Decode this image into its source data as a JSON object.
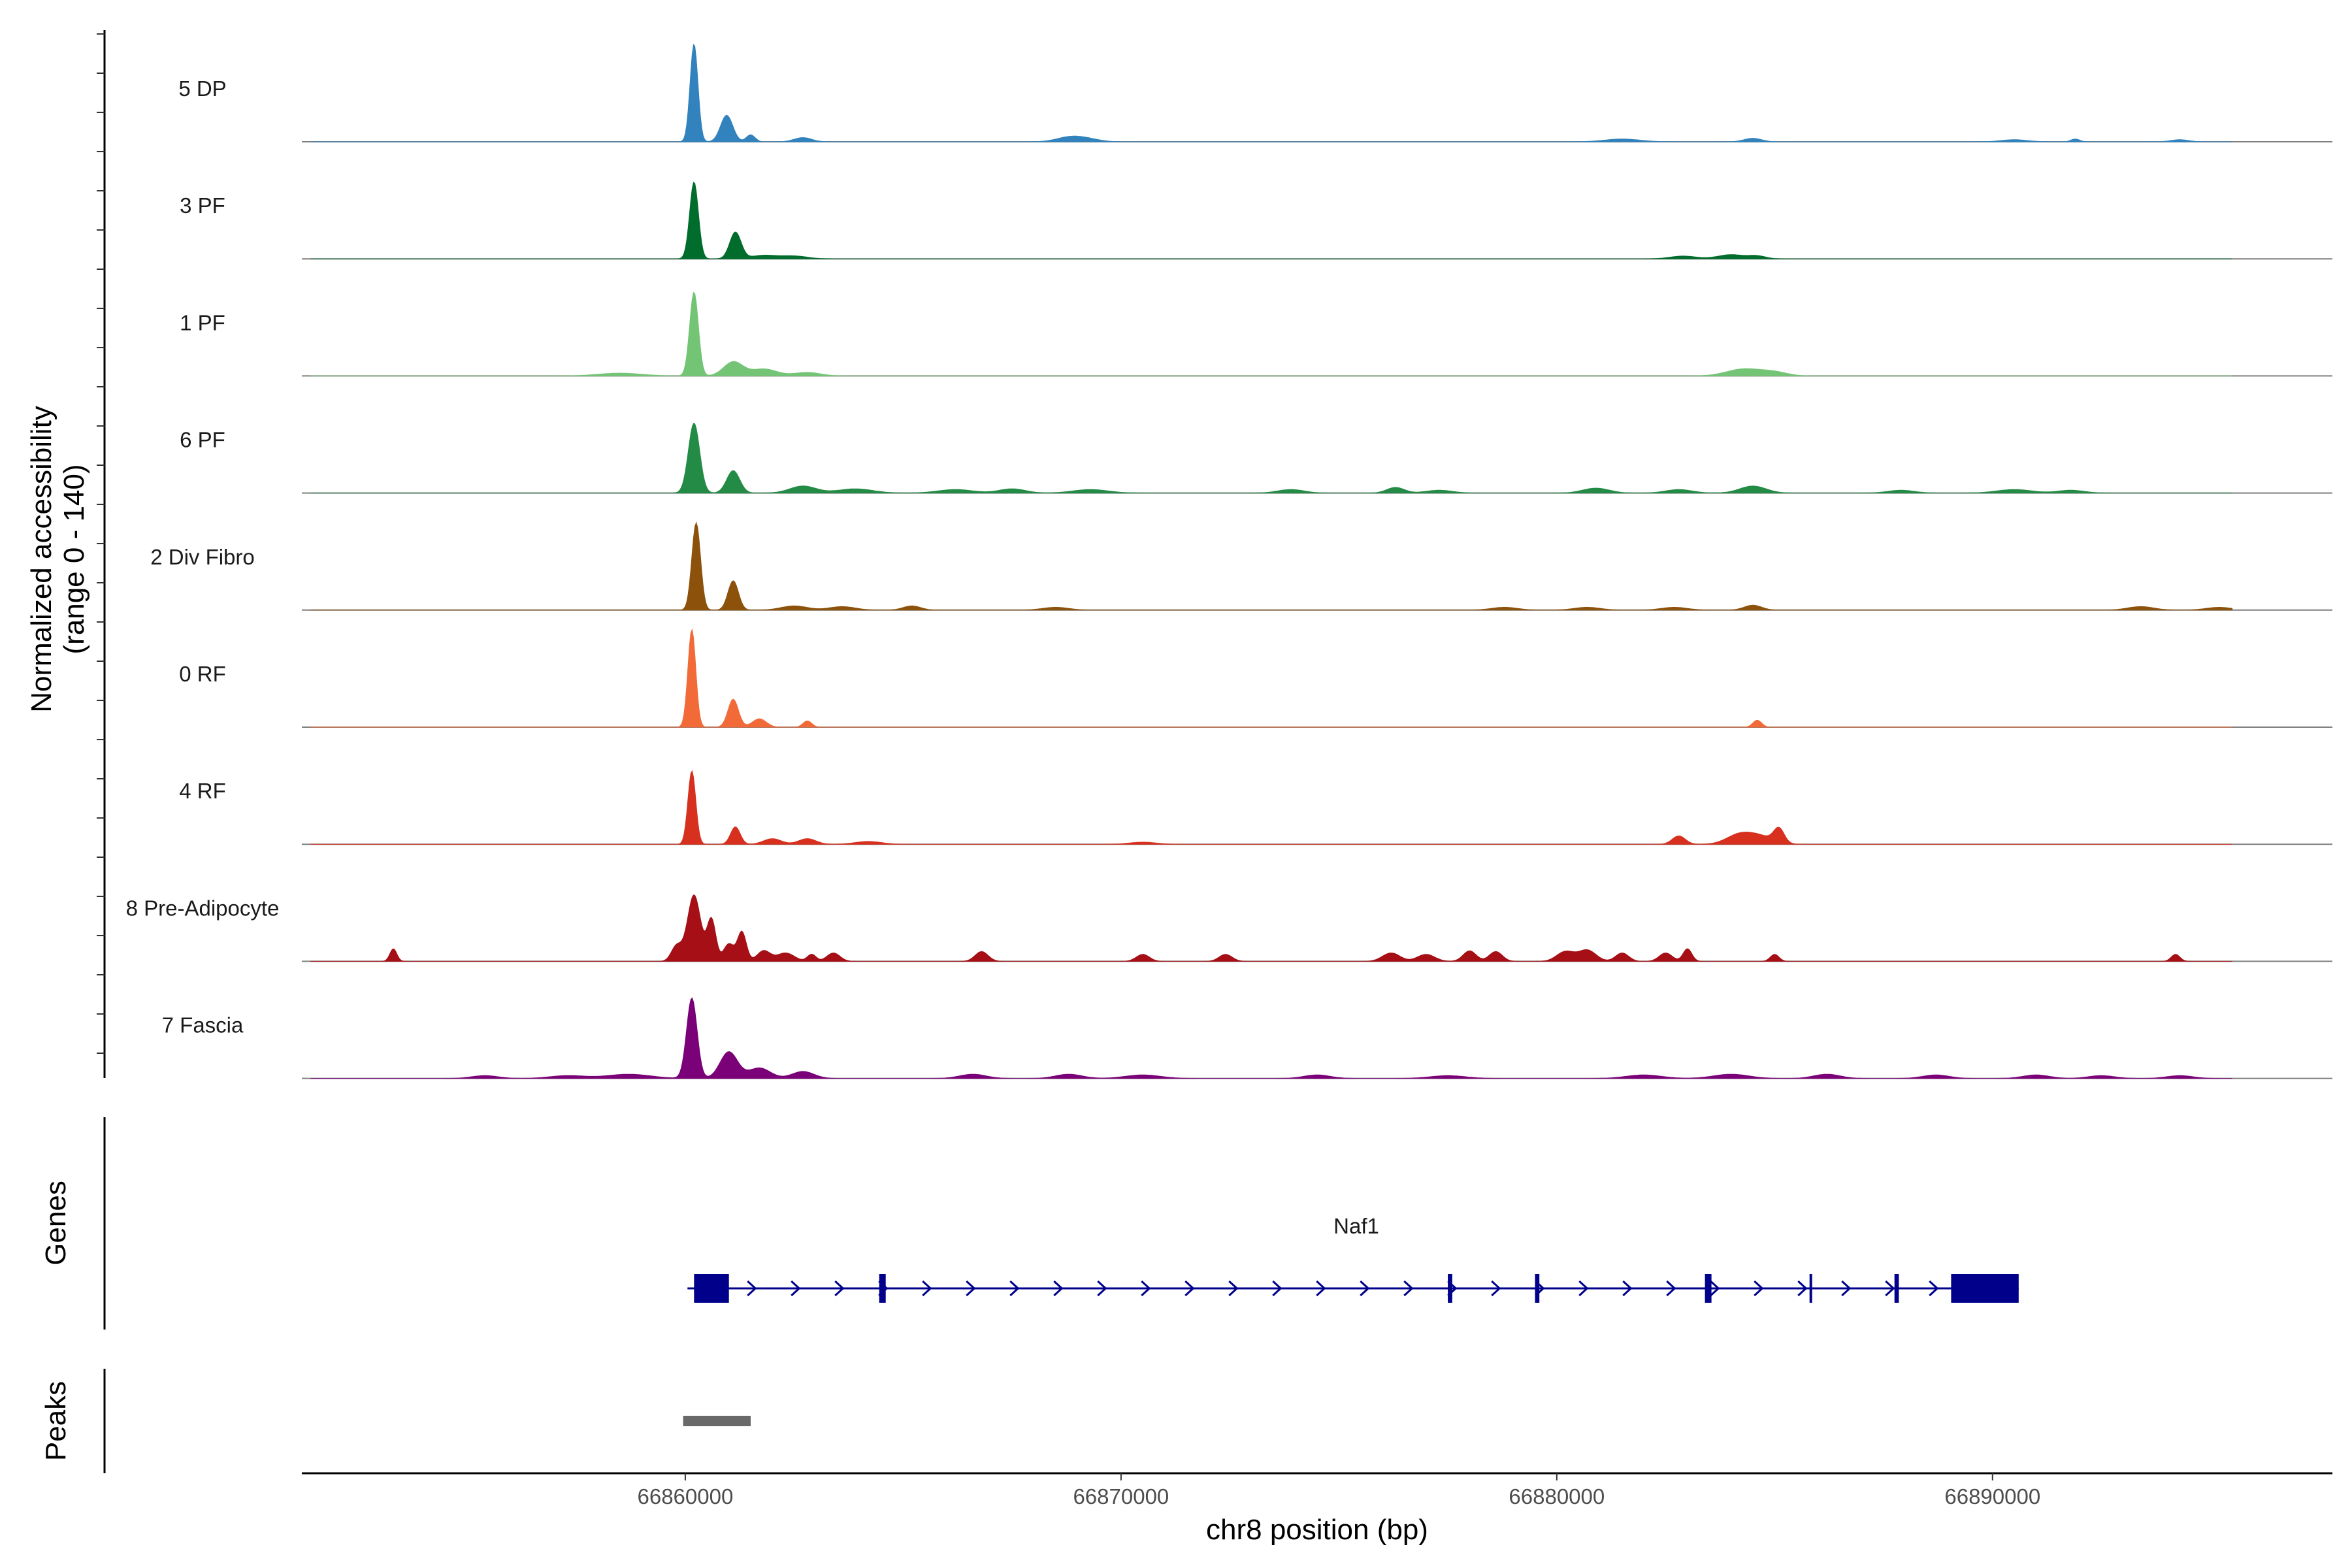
{
  "chart_data": {
    "type": "coverage",
    "ylabel": "Normalized accessibility",
    "ylabel_range": "(range 0 - 140)",
    "y_range": [
      0,
      140
    ],
    "xlabel": "chr8 position (bp)",
    "x_range": [
      66851200,
      66897800
    ],
    "x_ticks": [
      66860000,
      66870000,
      66880000,
      66890000
    ],
    "x_tick_labels": [
      "66860000",
      "66870000",
      "66880000",
      "66890000"
    ],
    "tracks": [
      {
        "name": "5 DP",
        "color": "#3182bd",
        "peaks": [
          [
            66860200,
            140,
            90
          ],
          [
            66860950,
            38,
            140
          ],
          [
            66861500,
            10,
            100
          ],
          [
            66862700,
            6,
            200
          ],
          [
            66868800,
            6,
            300
          ],
          [
            66869200,
            4,
            300
          ],
          [
            66881500,
            4,
            400
          ],
          [
            66884500,
            5,
            200
          ],
          [
            66890500,
            3,
            300
          ],
          [
            66891900,
            4,
            100
          ],
          [
            66894300,
            3,
            200
          ]
        ]
      },
      {
        "name": "3 PF",
        "color": "#006d2c",
        "peaks": [
          [
            66860200,
            110,
            100
          ],
          [
            66861150,
            38,
            130
          ],
          [
            66861800,
            5,
            300
          ],
          [
            66862500,
            4,
            300
          ],
          [
            66882900,
            4,
            300
          ],
          [
            66884000,
            6,
            300
          ],
          [
            66884600,
            4,
            200
          ]
        ]
      },
      {
        "name": "1 PF",
        "color": "#74c476",
        "peaks": [
          [
            66860200,
            120,
            100
          ],
          [
            66861100,
            20,
            220
          ],
          [
            66861800,
            10,
            300
          ],
          [
            66862800,
            5,
            300
          ],
          [
            66858500,
            4,
            500
          ],
          [
            66884300,
            10,
            400
          ],
          [
            66885000,
            5,
            300
          ]
        ]
      },
      {
        "name": "6 PF",
        "color": "#238b45",
        "peaks": [
          [
            66860200,
            100,
            130
          ],
          [
            66861100,
            32,
            150
          ],
          [
            66862700,
            10,
            300
          ],
          [
            66863900,
            6,
            400
          ],
          [
            66866200,
            5,
            400
          ],
          [
            66867500,
            6,
            300
          ],
          [
            66869300,
            5,
            400
          ],
          [
            66873900,
            5,
            300
          ],
          [
            66876300,
            8,
            200
          ],
          [
            66877300,
            4,
            300
          ],
          [
            66880900,
            7,
            300
          ],
          [
            66882800,
            5,
            300
          ],
          [
            66884500,
            10,
            300
          ],
          [
            66887900,
            4,
            300
          ],
          [
            66890500,
            5,
            400
          ],
          [
            66891800,
            4,
            300
          ]
        ]
      },
      {
        "name": "2 Div Fibro",
        "color": "#8c510a",
        "peaks": [
          [
            66860250,
            125,
            100
          ],
          [
            66861100,
            42,
            120
          ],
          [
            66862500,
            6,
            300
          ],
          [
            66863600,
            5,
            300
          ],
          [
            66865200,
            6,
            200
          ],
          [
            66868500,
            4,
            300
          ],
          [
            66878800,
            4,
            300
          ],
          [
            66880700,
            4,
            300
          ],
          [
            66882700,
            4,
            300
          ],
          [
            66884500,
            7,
            200
          ],
          [
            66893400,
            5,
            300
          ],
          [
            66895200,
            4,
            300
          ]
        ]
      },
      {
        "name": "0 RF",
        "color": "#f16a38",
        "peaks": [
          [
            66860150,
            140,
            90
          ],
          [
            66861100,
            40,
            120
          ],
          [
            66861700,
            12,
            160
          ],
          [
            66862800,
            9,
            100
          ],
          [
            66884600,
            10,
            100
          ]
        ]
      },
      {
        "name": "4 RF",
        "color": "#d7301f",
        "peaks": [
          [
            66860150,
            105,
            90
          ],
          [
            66861150,
            25,
            110
          ],
          [
            66862000,
            8,
            200
          ],
          [
            66862800,
            8,
            200
          ],
          [
            66864200,
            4,
            300
          ],
          [
            66870500,
            3,
            300
          ],
          [
            66882800,
            12,
            150
          ],
          [
            66884200,
            14,
            300
          ],
          [
            66885100,
            20,
            120
          ],
          [
            66884700,
            10,
            300
          ]
        ]
      },
      {
        "name": "8 Pre-Adipocyte",
        "color": "#a50f15",
        "peaks": [
          [
            66853300,
            18,
            80
          ],
          [
            66859800,
            22,
            120
          ],
          [
            66860200,
            95,
            150
          ],
          [
            66860600,
            60,
            100
          ],
          [
            66861000,
            25,
            120
          ],
          [
            66861300,
            42,
            100
          ],
          [
            66861800,
            15,
            150
          ],
          [
            66862300,
            12,
            200
          ],
          [
            66862900,
            10,
            100
          ],
          [
            66863400,
            12,
            150
          ],
          [
            66866800,
            14,
            150
          ],
          [
            66870500,
            10,
            150
          ],
          [
            66872400,
            10,
            150
          ],
          [
            66876200,
            12,
            200
          ],
          [
            66877000,
            10,
            200
          ],
          [
            66878000,
            15,
            150
          ],
          [
            66878600,
            14,
            150
          ],
          [
            66880200,
            14,
            200
          ],
          [
            66880700,
            16,
            200
          ],
          [
            66881500,
            12,
            150
          ],
          [
            66882500,
            12,
            150
          ],
          [
            66883000,
            18,
            100
          ],
          [
            66885000,
            10,
            100
          ],
          [
            66894200,
            10,
            100
          ]
        ]
      },
      {
        "name": "7 Fascia",
        "color": "#7a0177",
        "peaks": [
          [
            66860150,
            115,
            120
          ],
          [
            66861000,
            38,
            200
          ],
          [
            66861700,
            15,
            250
          ],
          [
            66862700,
            10,
            250
          ],
          [
            66858700,
            6,
            500
          ],
          [
            66857300,
            4,
            400
          ],
          [
            66855400,
            4,
            300
          ],
          [
            66866600,
            6,
            300
          ],
          [
            66868800,
            6,
            300
          ],
          [
            66870500,
            5,
            400
          ],
          [
            66874500,
            5,
            300
          ],
          [
            66877500,
            4,
            400
          ],
          [
            66882000,
            5,
            400
          ],
          [
            66884000,
            6,
            400
          ],
          [
            66886200,
            6,
            300
          ],
          [
            66888700,
            5,
            300
          ],
          [
            66891000,
            5,
            300
          ],
          [
            66892500,
            4,
            300
          ],
          [
            66894300,
            4,
            300
          ]
        ]
      }
    ],
    "gene": {
      "name": "Naf1",
      "strand": "+",
      "color": "#00008b",
      "start": 66860200,
      "end": 66890600,
      "exons": [
        [
          66860200,
          66861000
        ],
        [
          66864450,
          66864600
        ],
        [
          66877500,
          66877600
        ],
        [
          66879500,
          66879600
        ],
        [
          66883400,
          66883550
        ],
        [
          66885800,
          66885830
        ],
        [
          66887750,
          66887850
        ],
        [
          66889050,
          66890600
        ]
      ]
    },
    "peaks_track": {
      "color": "#696969",
      "regions": [
        [
          66859950,
          66861500
        ]
      ]
    },
    "panel_titles": [
      "Genes",
      "Peaks"
    ]
  }
}
